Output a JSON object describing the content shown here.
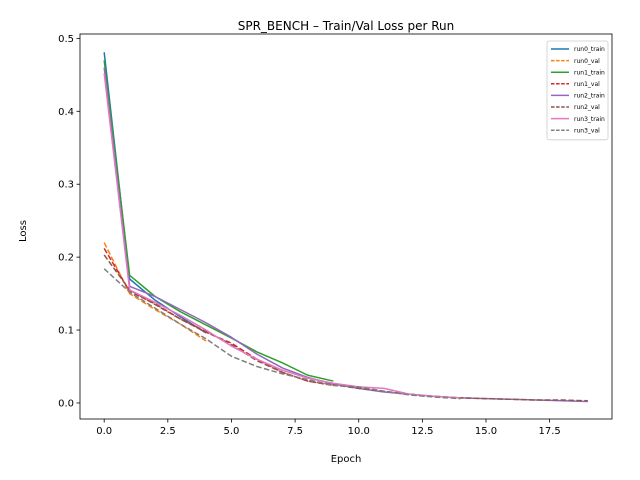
{
  "chart_data": {
    "type": "line",
    "title": "SPR_BENCH – Train/Val Loss per Run",
    "xlabel": "Epoch",
    "ylabel": "Loss",
    "xlim": [
      -0.95,
      19.95
    ],
    "ylim": [
      -0.022,
      0.506
    ],
    "xticks": [
      0.0,
      2.5,
      5.0,
      7.5,
      10.0,
      12.5,
      15.0,
      17.5
    ],
    "xtick_labels": [
      "0.0",
      "2.5",
      "5.0",
      "7.5",
      "10.0",
      "12.5",
      "15.0",
      "17.5"
    ],
    "yticks": [
      0.0,
      0.1,
      0.2,
      0.3,
      0.4,
      0.5
    ],
    "ytick_labels": [
      "0.0",
      "0.1",
      "0.2",
      "0.3",
      "0.4",
      "0.5"
    ],
    "grid": false,
    "legend_position": "top-right",
    "series": [
      {
        "name": "run0_train",
        "color": "#1f77b4",
        "dash": "solid",
        "x": [
          0,
          1,
          2,
          3,
          4
        ],
        "y": [
          0.481,
          0.17,
          0.141,
          0.118,
          0.096
        ]
      },
      {
        "name": "run0_val",
        "color": "#ff7f0e",
        "dash": "dashed",
        "x": [
          0,
          1,
          2,
          3,
          4
        ],
        "y": [
          0.22,
          0.15,
          0.128,
          0.108,
          0.085
        ]
      },
      {
        "name": "run1_train",
        "color": "#2ca02c",
        "dash": "solid",
        "x": [
          0,
          1,
          2,
          3,
          4,
          5,
          6,
          7,
          8,
          9
        ],
        "y": [
          0.47,
          0.175,
          0.146,
          0.125,
          0.107,
          0.089,
          0.07,
          0.055,
          0.038,
          0.03
        ]
      },
      {
        "name": "run1_val",
        "color": "#d62728",
        "dash": "dashed",
        "x": [
          0,
          1,
          2,
          3,
          4,
          5,
          6,
          7,
          8,
          9
        ],
        "y": [
          0.212,
          0.153,
          0.136,
          0.115,
          0.097,
          0.082,
          0.06,
          0.042,
          0.03,
          0.024
        ]
      },
      {
        "name": "run2_train",
        "color": "#9467bd",
        "dash": "solid",
        "x": [
          0,
          1,
          2,
          3,
          4,
          5,
          6,
          7,
          8,
          9,
          10,
          11,
          12,
          13,
          14,
          15,
          16,
          17,
          18,
          19
        ],
        "y": [
          0.46,
          0.16,
          0.146,
          0.128,
          0.11,
          0.09,
          0.067,
          0.048,
          0.035,
          0.026,
          0.02,
          0.015,
          0.012,
          0.009,
          0.007,
          0.006,
          0.005,
          0.004,
          0.003,
          0.002
        ]
      },
      {
        "name": "run2_val",
        "color": "#8c564b",
        "dash": "dashed",
        "x": [
          0,
          1,
          2,
          3,
          4,
          5,
          6,
          7,
          8,
          9,
          10,
          11,
          12,
          13,
          14,
          15,
          16,
          17,
          18,
          19
        ],
        "y": [
          0.203,
          0.155,
          0.135,
          0.115,
          0.098,
          0.08,
          0.058,
          0.042,
          0.03,
          0.025,
          0.02,
          0.016,
          0.012,
          0.009,
          0.007,
          0.006,
          0.005,
          0.004,
          0.004,
          0.003
        ]
      },
      {
        "name": "run3_train",
        "color": "#e377c2",
        "dash": "solid",
        "x": [
          0,
          1,
          2,
          3,
          4,
          5,
          6,
          7,
          8,
          9,
          10,
          11,
          12,
          13,
          14
        ],
        "y": [
          0.452,
          0.155,
          0.138,
          0.12,
          0.1,
          0.078,
          0.06,
          0.045,
          0.034,
          0.027,
          0.022,
          0.02,
          0.012,
          0.009,
          0.007
        ]
      },
      {
        "name": "run3_val",
        "color": "#7f7f7f",
        "dash": "dashed",
        "x": [
          0,
          1,
          2,
          3,
          4,
          5,
          6,
          7,
          8,
          9,
          10,
          11,
          12,
          13,
          14
        ],
        "y": [
          0.184,
          0.152,
          0.13,
          0.108,
          0.088,
          0.064,
          0.05,
          0.04,
          0.032,
          0.024,
          0.022,
          0.016,
          0.011,
          0.008,
          0.006
        ]
      }
    ]
  }
}
